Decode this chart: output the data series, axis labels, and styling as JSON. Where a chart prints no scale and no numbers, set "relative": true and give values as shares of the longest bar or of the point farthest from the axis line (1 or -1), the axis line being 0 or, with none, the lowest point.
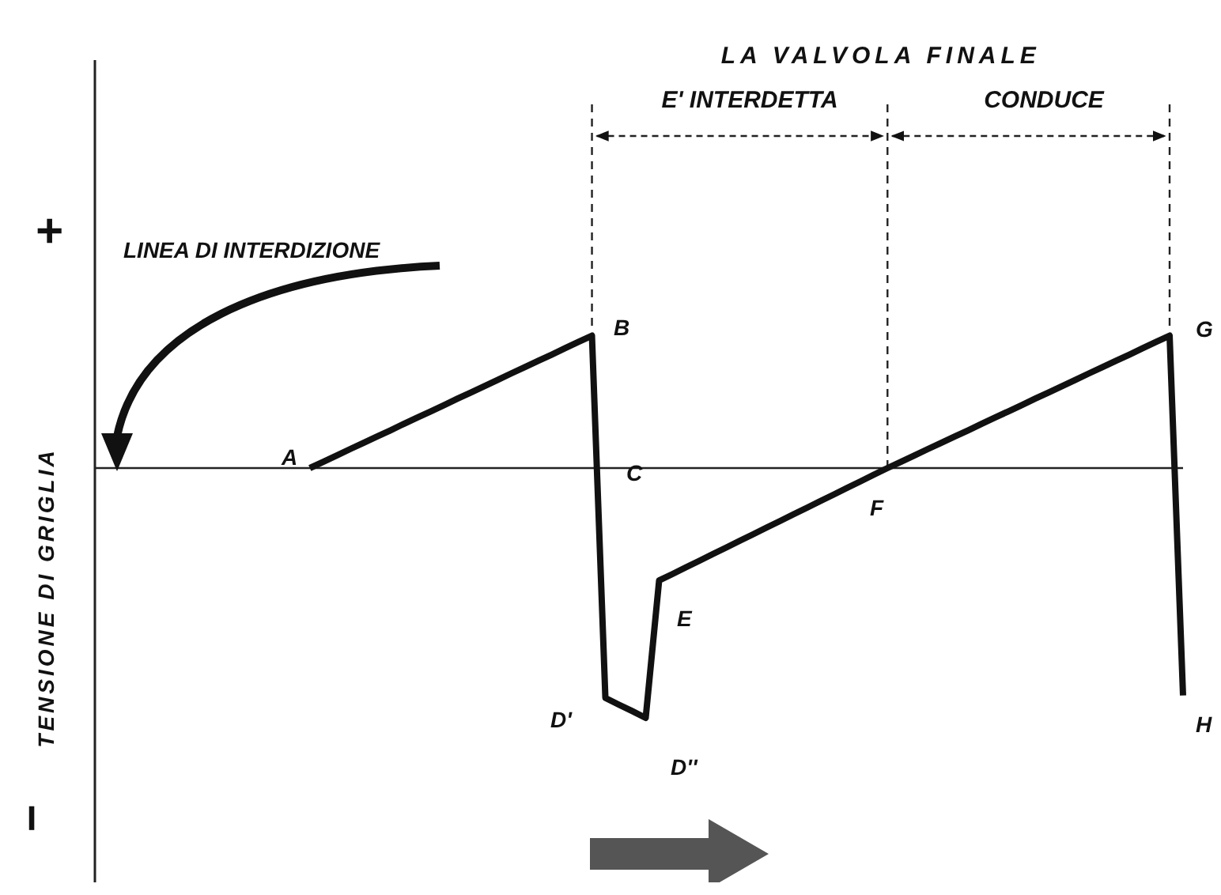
{
  "chart_data": {
    "type": "line",
    "title": "LA VALVOLA FINALE",
    "ylabel": "TENSIONE DI GRIGLIA",
    "relative": true,
    "categories": [
      null,
      null,
      null,
      null,
      null,
      null,
      null,
      null,
      null,
      null,
      null,
      null,
      null,
      null,
      null,
      null,
      null,
      null,
      null,
      null,
      null,
      null,
      null,
      null,
      null,
      null,
      null,
      null,
      null,
      null,
      null,
      null,
      null,
      null,
      null,
      null,
      null,
      null,
      null,
      null,
      null,
      null,
      null,
      null,
      null,
      null,
      null,
      null,
      null,
      null,
      null,
      null,
      null,
      null,
      null,
      null,
      null,
      null,
      null,
      null,
      null,
      null,
      null,
      null,
      null,
      null,
      null,
      null,
      null,
      null,
      null,
      null,
      null,
      null,
      null,
      null,
      null,
      null,
      null,
      null,
      null,
      null
    ],
    "series": [
      {
        "color": "#111111",
        "values": [
          null,
          null,
          null,
          null,
          null,
          null,
          null,
          null,
          null,
          null,
          null,
          null,
          null,
          null,
          null,
          null,
          0,
          0.025,
          0.05,
          0.076,
          0.101,
          0.126,
          0.151,
          0.177,
          0.202,
          0.227,
          0.252,
          0.278,
          0.303,
          0.328,
          0.353,
          0.379,
          0.404,
          0.429,
          0.454,
          0.48,
          0.505,
          0.53,
          -0.92,
          -0.947,
          -0.973,
          -1,
          -0.45,
          -0.424,
          -0.397,
          -0.371,
          -0.344,
          -0.318,
          -0.291,
          -0.265,
          -0.238,
          -0.212,
          -0.185,
          -0.159,
          -0.132,
          -0.106,
          -0.079,
          -0.053,
          -0.026,
          0,
          0.025,
          0.05,
          0.076,
          0.101,
          0.126,
          0.151,
          0.177,
          0.202,
          0.227,
          0.252,
          0.278,
          0.303,
          0.328,
          0.353,
          0.379,
          0.404,
          0.429,
          0.454,
          0.48,
          0.505,
          0.53,
          -0.91
        ]
      }
    ],
    "annotations": [
      "LINEA DI INTERDIZIONE",
      "+",
      "−",
      "E' INTERDETTA",
      "CONDUCE",
      "A",
      "B",
      "C",
      "D'",
      "D''",
      "E",
      "F",
      "G",
      "H"
    ]
  }
}
